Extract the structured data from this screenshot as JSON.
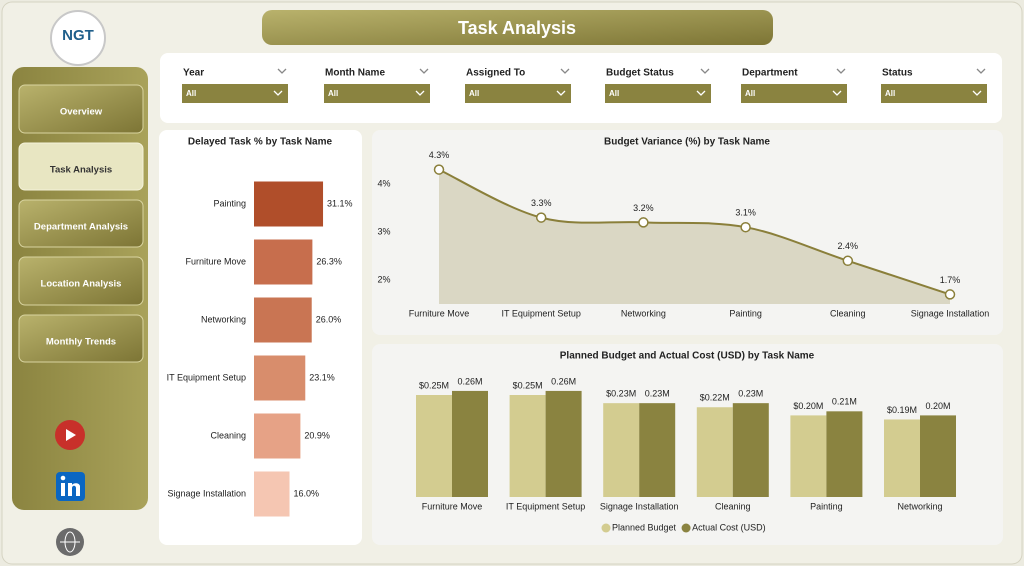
{
  "header": {
    "title": "Task Analysis",
    "logo": "NGT"
  },
  "nav": {
    "items": [
      "Overview",
      "Task Analysis",
      "Department Analysis",
      "Location Analysis",
      "Monthly Trends"
    ]
  },
  "filters": [
    {
      "label": "Year",
      "value": "All"
    },
    {
      "label": "Month Name",
      "value": "All"
    },
    {
      "label": "Assigned To",
      "value": "All"
    },
    {
      "label": "Budget Status",
      "value": "All"
    },
    {
      "label": "Department",
      "value": "All"
    },
    {
      "label": "Status",
      "value": "All"
    }
  ],
  "chart_data": [
    {
      "type": "bar",
      "orientation": "horizontal",
      "title": "Delayed Task % by Task Name",
      "categories": [
        "Painting",
        "Furniture Move",
        "Networking",
        "IT Equipment Setup",
        "Cleaning",
        "Signage Installation"
      ],
      "values": [
        31.1,
        26.3,
        26.0,
        23.1,
        20.9,
        16.0
      ],
      "value_labels": [
        "31.1%",
        "26.3%",
        "26.0%",
        "23.1%",
        "20.9%",
        "16.0%"
      ],
      "colors": [
        "#b04e2a",
        "#c76e4d",
        "#c97553",
        "#d88d6c",
        "#e6a286",
        "#f5c6b2"
      ]
    },
    {
      "type": "area",
      "title": "Budget Variance (%) by Task Name",
      "categories": [
        "Furniture Move",
        "IT Equipment Setup",
        "Networking",
        "Painting",
        "Cleaning",
        "Signage Installation"
      ],
      "values": [
        4.3,
        3.3,
        3.2,
        3.1,
        2.4,
        1.7
      ],
      "value_labels": [
        "4.3%",
        "3.3%",
        "3.2%",
        "3.1%",
        "2.4%",
        "1.7%"
      ],
      "ylim": [
        1.5,
        4.5
      ],
      "yticks": [
        {
          "value": 2,
          "label": "2%"
        },
        {
          "value": 3,
          "label": "3%"
        },
        {
          "value": 4,
          "label": "4%"
        }
      ],
      "color": "#8a7f3a"
    },
    {
      "type": "bar",
      "orientation": "vertical",
      "title": "Planned Budget and Actual Cost (USD) by Task Name",
      "categories": [
        "Furniture Move",
        "IT Equipment Setup",
        "Signage Installation",
        "Cleaning",
        "Painting",
        "Networking"
      ],
      "series": [
        {
          "name": "Planned Budget",
          "color": "#d3cc90",
          "values": [
            0.25,
            0.25,
            0.23,
            0.22,
            0.2,
            0.19
          ],
          "value_labels": [
            "$0.25M",
            "$0.25M",
            "$0.23M",
            "$0.22M",
            "$0.20M",
            "$0.19M"
          ]
        },
        {
          "name": "Actual Cost (USD)",
          "color": "#8a8340",
          "values": [
            0.26,
            0.26,
            0.23,
            0.23,
            0.21,
            0.2
          ],
          "value_labels": [
            "0.26M",
            "0.26M",
            "0.23M",
            "0.23M",
            "0.21M",
            "0.20M"
          ]
        }
      ],
      "legend": "bottom"
    }
  ]
}
